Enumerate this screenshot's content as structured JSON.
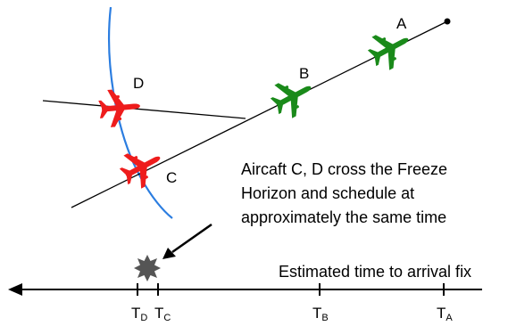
{
  "aircraft_labels": {
    "a": "A",
    "b": "B",
    "c": "C",
    "d": "D"
  },
  "annotation": {
    "line1": "Aircaft C, D cross the Freeze",
    "line2": "Horizon and schedule at",
    "line3": "approximately the same time"
  },
  "axis_label": "Estimated time to arrival fix",
  "ticks": [
    {
      "main": "T",
      "sub": "D"
    },
    {
      "main": "T",
      "sub": "C"
    },
    {
      "main": "T",
      "sub": "B"
    },
    {
      "main": "T",
      "sub": "A"
    }
  ],
  "colors": {
    "green": "#1a8a1a",
    "red": "#ee1c1c",
    "blue": "#2b7de0",
    "burst": "#555555",
    "line": "#000000"
  },
  "icons": [
    "airplane-icon",
    "collision-burst-icon",
    "arrow-left-icon"
  ]
}
